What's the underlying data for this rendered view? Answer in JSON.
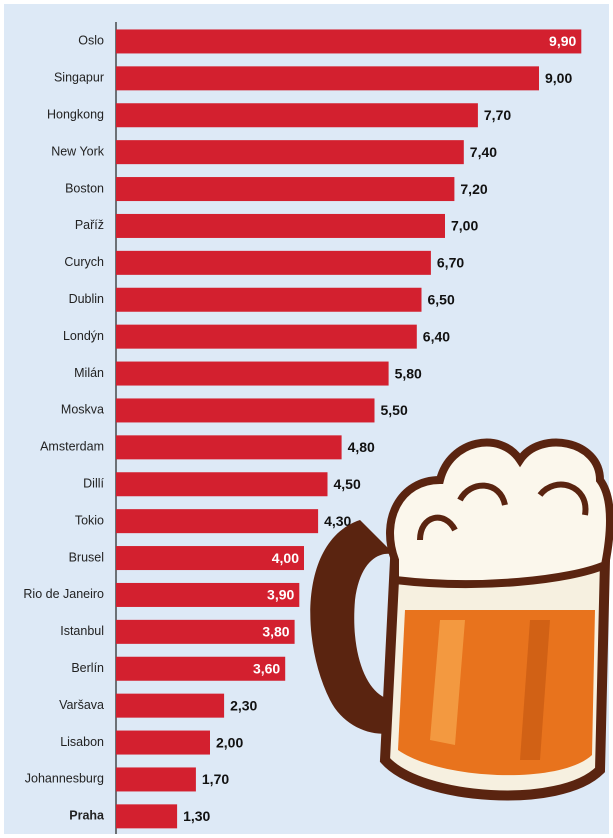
{
  "chart_data": {
    "type": "hbar",
    "categories": [
      "Oslo",
      "Singapur",
      "Hongkong",
      "New York",
      "Boston",
      "Paříž",
      "Curych",
      "Dublin",
      "Londýn",
      "Milán",
      "Moskva",
      "Amsterdam",
      "Dillí",
      "Tokio",
      "Brusel",
      "Rio de Janeiro",
      "Istanbul",
      "Berlín",
      "Varšava",
      "Lisabon",
      "Johannesburg",
      "Praha"
    ],
    "values": [
      9.9,
      9.0,
      7.7,
      7.4,
      7.2,
      7.0,
      6.7,
      6.5,
      6.4,
      5.8,
      5.5,
      4.8,
      4.5,
      4.3,
      4.0,
      3.9,
      3.8,
      3.6,
      2.3,
      2.0,
      1.7,
      1.3
    ],
    "value_labels": [
      "9,90",
      "9,00",
      "7,70",
      "7,40",
      "7,20",
      "7,00",
      "6,70",
      "6,50",
      "6,40",
      "5,80",
      "5,50",
      "4,80",
      "4,50",
      "4,30",
      "4,00",
      "3,90",
      "3,80",
      "3,60",
      "2,30",
      "2,00",
      "1,70",
      "1,30"
    ],
    "color": "#d3202f",
    "xlim": [
      0,
      10
    ]
  }
}
